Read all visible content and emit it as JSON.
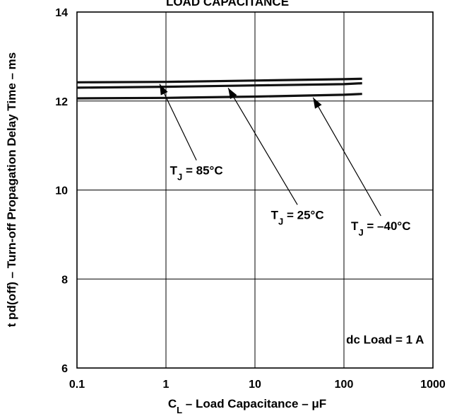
{
  "chart_data": {
    "type": "line",
    "title": "LOAD CAPACITANCE",
    "xlabel": {
      "main": "C",
      "sub": "L",
      "rest": " – Load Capacitance – μF"
    },
    "ylabel": "t pd(off) – Turn-off Propagation Delay Time – ms",
    "xscale": "log",
    "xlim": [
      0.1,
      1000
    ],
    "ylim": [
      6,
      14
    ],
    "xticks": [
      0.1,
      1,
      10,
      100,
      1000
    ],
    "xtick_labels": [
      "0.1",
      "1",
      "10",
      "100",
      "1000"
    ],
    "yticks": [
      6,
      8,
      10,
      12,
      14
    ],
    "ytick_labels": [
      "6",
      "8",
      "10",
      "12",
      "14"
    ],
    "grid": true,
    "series": [
      {
        "name": "T_J = 85°C",
        "x": [
          0.1,
          1,
          10,
          100,
          160
        ],
        "y": [
          12.42,
          12.43,
          12.46,
          12.49,
          12.5
        ]
      },
      {
        "name": "T_J = 25°C",
        "x": [
          0.1,
          1,
          10,
          100,
          160
        ],
        "y": [
          12.3,
          12.32,
          12.35,
          12.38,
          12.4
        ]
      },
      {
        "name": "T_J = –40°C",
        "x": [
          0.1,
          1,
          10,
          100,
          160
        ],
        "y": [
          12.06,
          12.07,
          12.1,
          12.14,
          12.16
        ]
      }
    ],
    "annotations": [
      {
        "id": "tj85",
        "pre": "T",
        "sub": "J",
        "post": " = 85°C",
        "series": 0,
        "arrow_x": 0.85,
        "label_x": 2.2,
        "label_y": 10.35
      },
      {
        "id": "tj25",
        "pre": "T",
        "sub": "J",
        "post": " = 25°C",
        "series": 1,
        "arrow_x": 5,
        "label_x": 30,
        "label_y": 9.35
      },
      {
        "id": "tjm40",
        "pre": "T",
        "sub": "J",
        "post": " = –40°C",
        "series": 2,
        "arrow_x": 45,
        "label_x": 260,
        "label_y": 9.1
      },
      {
        "id": "dcload",
        "text": "dc Load = 1 A",
        "label_x": 290,
        "label_y": 6.55
      }
    ]
  }
}
